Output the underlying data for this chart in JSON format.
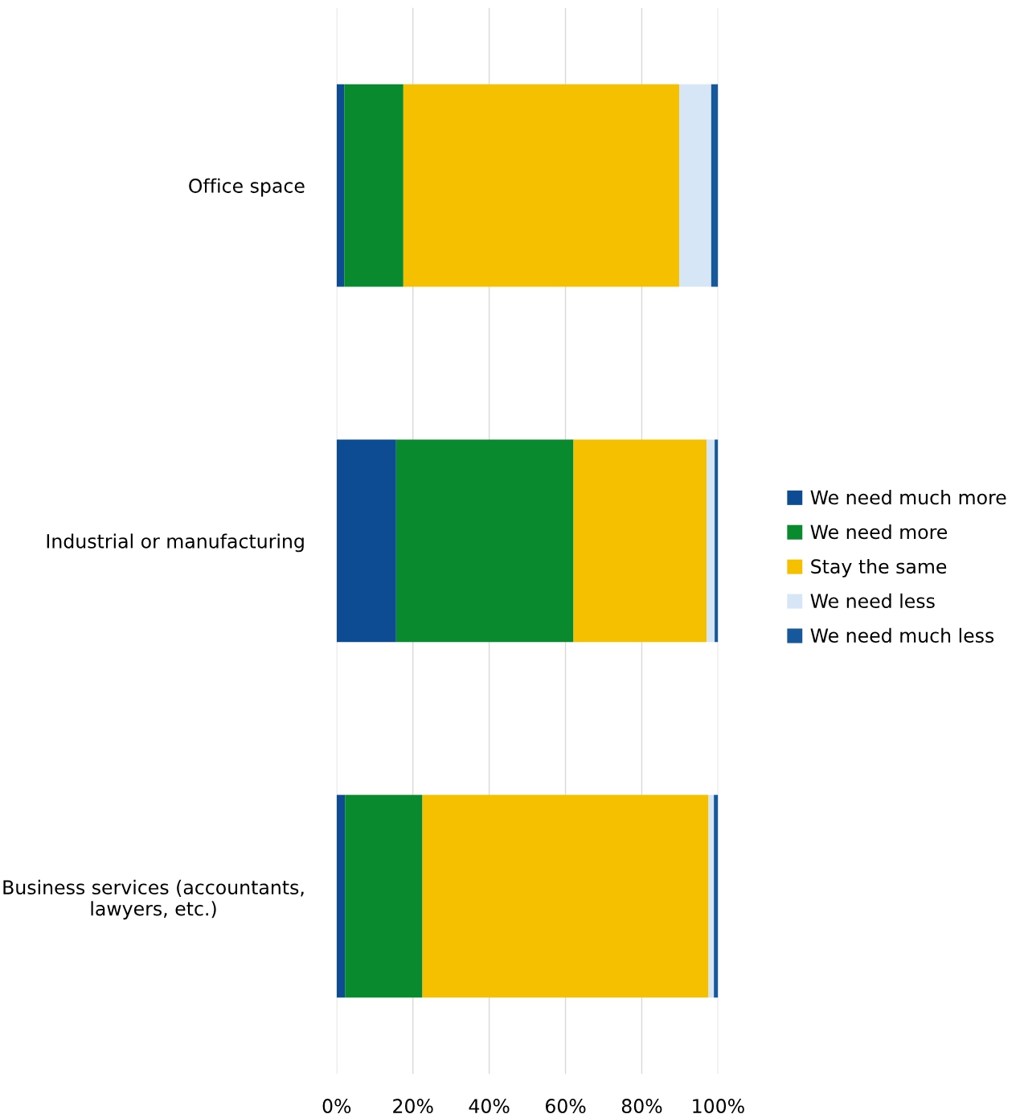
{
  "chart_data": {
    "type": "bar",
    "orientation": "horizontal",
    "stacked": true,
    "categories": [
      "Office space",
      "Industrial or manufacturing",
      "Business services (accountants,\nlawyers, etc.)"
    ],
    "series": [
      {
        "name": "We need much more",
        "color": "#0d4c92",
        "values": [
          2,
          15.6,
          2.2
        ]
      },
      {
        "name": "We need more",
        "color": "#0a8a2e",
        "values": [
          15.5,
          46.5,
          20.3
        ]
      },
      {
        "name": "Stay the same",
        "color": "#f5c000",
        "values": [
          72.3,
          34.9,
          75.0
        ]
      },
      {
        "name": "We need less",
        "color": "#d6e6f7",
        "values": [
          8.4,
          2.1,
          1.4
        ]
      },
      {
        "name": "We need much less",
        "color": "#17589c",
        "values": [
          1.8,
          0.9,
          1.1
        ]
      }
    ],
    "xlim": [
      0,
      100
    ],
    "xticks": [
      {
        "value": 0,
        "label": "0%"
      },
      {
        "value": 20,
        "label": "20%"
      },
      {
        "value": 40,
        "label": "40%"
      },
      {
        "value": 60,
        "label": "60%"
      },
      {
        "value": 80,
        "label": "80%"
      },
      {
        "value": 100,
        "label": "100%"
      }
    ],
    "grid": "x",
    "legend": "right"
  }
}
